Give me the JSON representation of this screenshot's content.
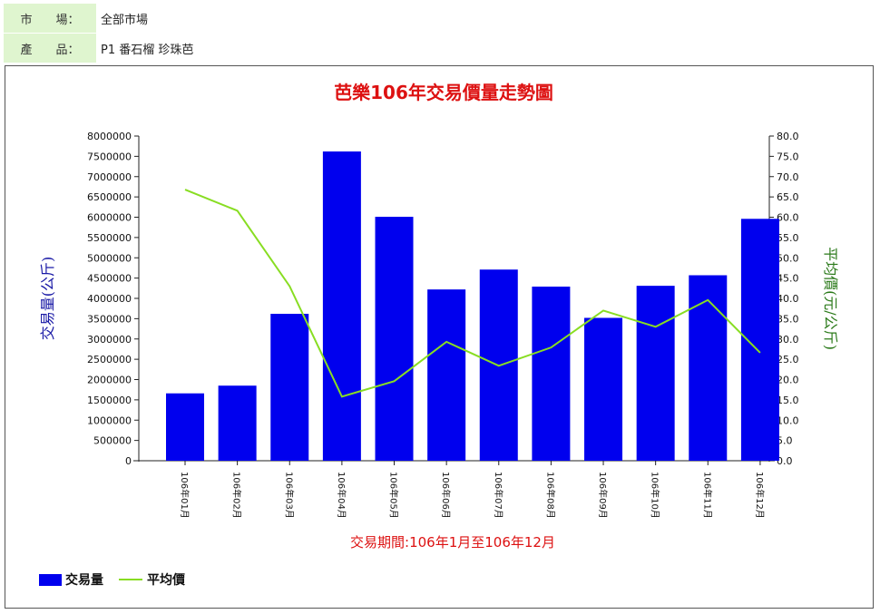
{
  "filters": {
    "market_label": "市　　場：",
    "market_value": "全部市場",
    "product_label": "產　　品：",
    "product_value": "P1 番石榴 珍珠芭"
  },
  "colors": {
    "title": "#dd1111",
    "bar": "#0000ee",
    "line": "#88dd22",
    "left_axis_label": "#1a1aa6",
    "right_axis_label": "#2b7a1a",
    "filter_bg": "#dff5cf"
  },
  "chart_data": {
    "type": "bar",
    "title": "芭樂106年交易價量走勢圖",
    "xlabel": "交易期間:106年1月至106年12月",
    "ylabel": "交易量(公斤)",
    "y2label": "平均價(元/公斤)",
    "categories": [
      "106年01月",
      "106年02月",
      "106年03月",
      "106年04月",
      "106年05月",
      "106年06月",
      "106年07月",
      "106年08月",
      "106年09月",
      "106年10月",
      "106年11月",
      "106年12月"
    ],
    "ylim": [
      0,
      8000000
    ],
    "y2lim": [
      0,
      80
    ],
    "yticks": [
      "0",
      "500000",
      "1000000",
      "1500000",
      "2000000",
      "2500000",
      "3000000",
      "3500000",
      "4000000",
      "4500000",
      "5000000",
      "5500000",
      "6000000",
      "6500000",
      "7000000",
      "7500000",
      "8000000"
    ],
    "y2ticks": [
      "0.0",
      "5.0",
      "10.0",
      "15.0",
      "20.0",
      "25.0",
      "30.0",
      "35.0",
      "40.0",
      "45.0",
      "50.0",
      "55.0",
      "60.0",
      "65.0",
      "70.0",
      "75.0",
      "80.0"
    ],
    "series": [
      {
        "name": "交易量",
        "type": "bar",
        "axis": "left",
        "values": [
          1660000,
          1850000,
          3620000,
          7620000,
          6010000,
          4220000,
          4710000,
          4290000,
          3520000,
          4310000,
          4570000,
          5960000
        ]
      },
      {
        "name": "平均價",
        "type": "line",
        "axis": "right",
        "values": [
          66.8,
          61.6,
          43.0,
          15.8,
          19.6,
          29.3,
          23.4,
          27.9,
          37.0,
          33.0,
          39.6,
          26.6
        ]
      }
    ],
    "legend": [
      {
        "label": "交易量",
        "kind": "bar"
      },
      {
        "label": "平均價",
        "kind": "line"
      }
    ],
    "legend_position": "bottom-left",
    "grid": false
  }
}
